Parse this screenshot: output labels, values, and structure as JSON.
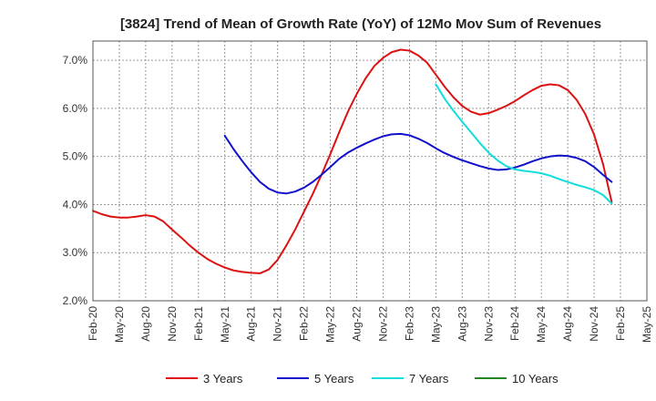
{
  "chart_data": {
    "type": "line",
    "title": "[3824]  Trend of Mean of Growth Rate (YoY) of 12Mo Mov Sum of Revenues",
    "xlabel": "",
    "ylabel": "",
    "ylim": [
      2.0,
      7.4
    ],
    "yticks": [
      2.0,
      3.0,
      4.0,
      5.0,
      6.0,
      7.0
    ],
    "ytick_labels": [
      "2.0%",
      "3.0%",
      "4.0%",
      "5.0%",
      "6.0%",
      "7.0%"
    ],
    "x_labels": [
      "Feb-20",
      "May-20",
      "Aug-20",
      "Nov-20",
      "Feb-21",
      "May-21",
      "Aug-21",
      "Nov-21",
      "Feb-22",
      "May-22",
      "Aug-22",
      "Nov-22",
      "Feb-23",
      "May-23",
      "Aug-23",
      "Nov-23",
      "Feb-24",
      "May-24",
      "Aug-24",
      "Nov-24",
      "Feb-25",
      "May-25"
    ],
    "grid": true,
    "legend_position": "bottom",
    "series": [
      {
        "name": "3 Years",
        "color": "#dd1111",
        "start_index": 0,
        "values": [
          3.87,
          3.8,
          3.75,
          3.73,
          3.73,
          3.75,
          3.78,
          3.75,
          3.65,
          3.48,
          3.32,
          3.15,
          3.0,
          2.87,
          2.77,
          2.69,
          2.63,
          2.6,
          2.58,
          2.57,
          2.65,
          2.85,
          3.15,
          3.48,
          3.85,
          4.22,
          4.62,
          5.05,
          5.5,
          5.93,
          6.3,
          6.62,
          6.88,
          7.05,
          7.17,
          7.22,
          7.2,
          7.1,
          6.95,
          6.7,
          6.45,
          6.23,
          6.05,
          5.93,
          5.87,
          5.9,
          5.97,
          6.05,
          6.15,
          6.27,
          6.38,
          6.47,
          6.5,
          6.48,
          6.38,
          6.18,
          5.88,
          5.45,
          4.85,
          4.05
        ]
      },
      {
        "name": "5 Years",
        "color": "#1111cc",
        "start_index": 15,
        "values": [
          5.43,
          5.15,
          4.9,
          4.67,
          4.47,
          4.33,
          4.25,
          4.23,
          4.27,
          4.35,
          4.47,
          4.62,
          4.78,
          4.95,
          5.08,
          5.18,
          5.27,
          5.35,
          5.42,
          5.46,
          5.47,
          5.44,
          5.37,
          5.28,
          5.17,
          5.07,
          4.99,
          4.92,
          4.86,
          4.8,
          4.75,
          4.72,
          4.73,
          4.77,
          4.83,
          4.9,
          4.96,
          5.0,
          5.02,
          5.01,
          4.97,
          4.9,
          4.78,
          4.62,
          4.47
        ]
      },
      {
        "name": "7 Years",
        "color": "#11dddd",
        "start_index": 39,
        "values": [
          6.5,
          6.2,
          5.95,
          5.72,
          5.5,
          5.28,
          5.08,
          4.92,
          4.8,
          4.73,
          4.7,
          4.68,
          4.65,
          4.6,
          4.53,
          4.47,
          4.41,
          4.36,
          4.3,
          4.2,
          4.02
        ]
      },
      {
        "name": "10 Years",
        "color": "#228822",
        "start_index": 0,
        "values": []
      }
    ]
  }
}
